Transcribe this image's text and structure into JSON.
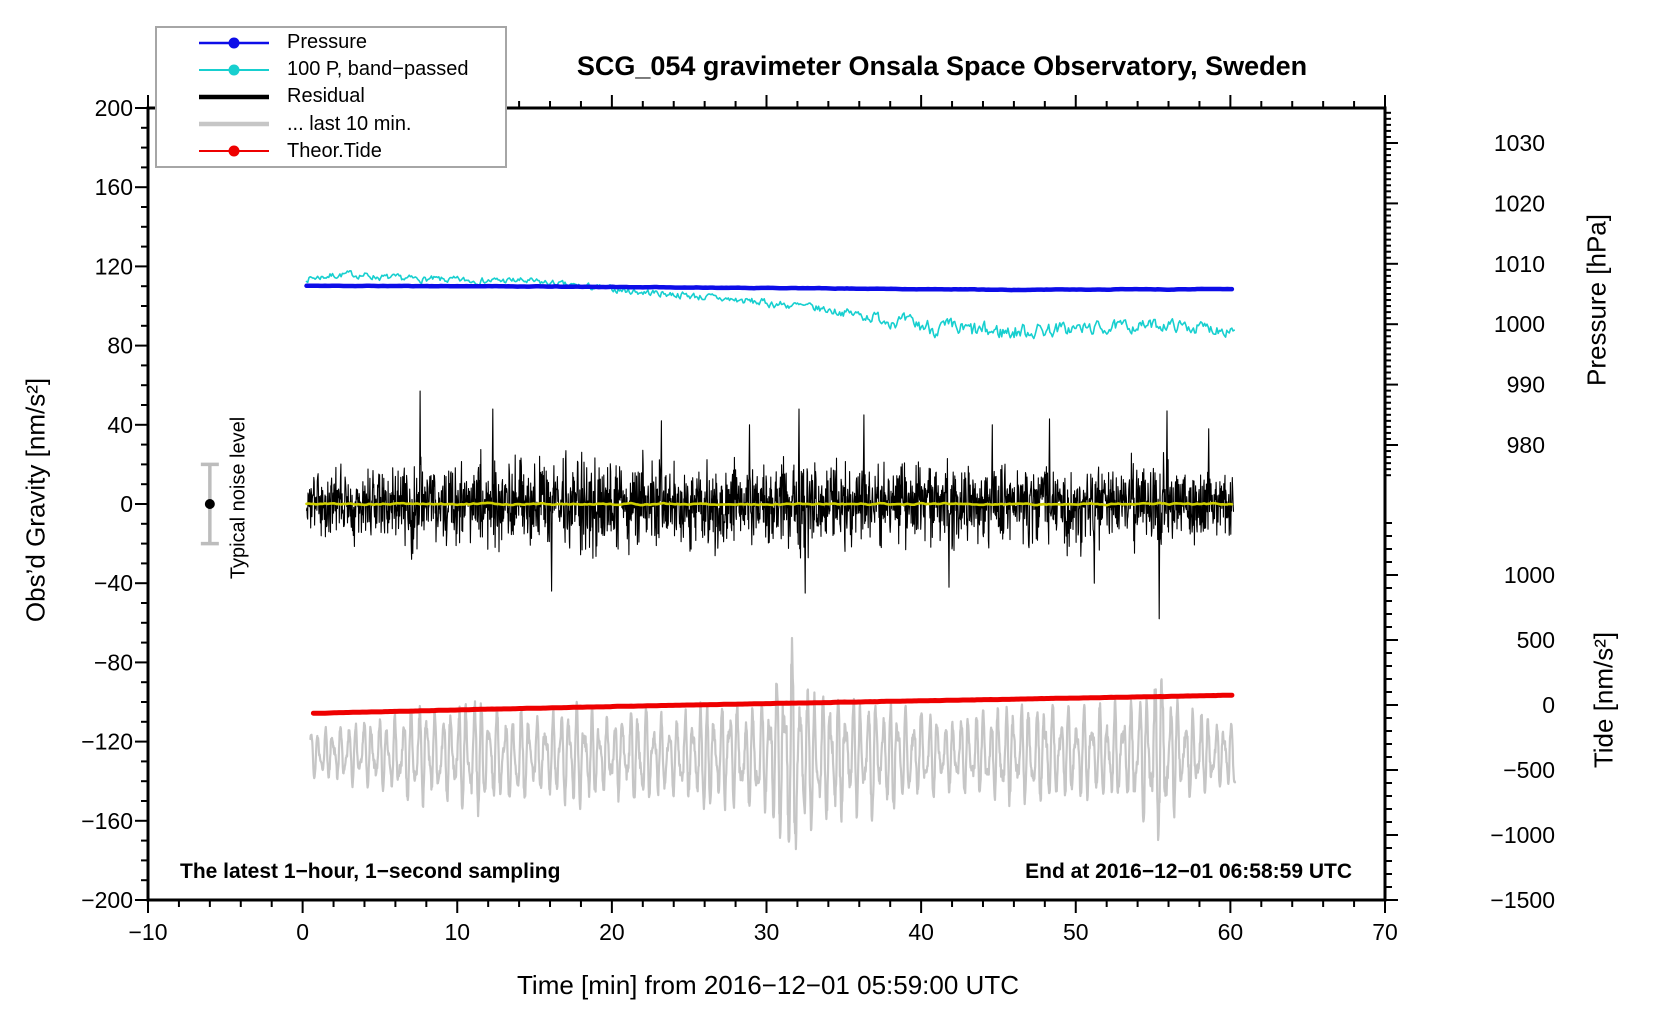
{
  "title": "SCG_054 gravimeter Onsala Space Observatory, Sweden",
  "annotations": {
    "bottom_left": "The latest 1−hour, 1−second sampling",
    "bottom_right": "End at 2016−12−01 06:58:59 UTC"
  },
  "legend": {
    "items": [
      {
        "label": "Pressure",
        "color": "#0d0de8",
        "dot": true,
        "line_width": 2.5
      },
      {
        "label": "100 P, band−passed",
        "color": "#17cfcf",
        "dot": true,
        "line_width": 2
      },
      {
        "label": "Residual",
        "color": "#000000",
        "dot": false,
        "line_width": 4.5
      },
      {
        "label": "... last 10 min.",
        "color": "#c6c6c6",
        "dot": false,
        "line_width": 4.5
      },
      {
        "label": "Theor.Tide",
        "color": "#ee0000",
        "dot": true,
        "line_width": 2
      }
    ]
  },
  "chart_data": {
    "type": "line",
    "title": "SCG_054 gravimeter Onsala Space Observatory, Sweden",
    "x_axis": {
      "label": "Time [min] from 2016−12−01 05:59:00 UTC",
      "min": -10,
      "max": 70,
      "major_ticks": [
        -10,
        0,
        10,
        20,
        30,
        40,
        50,
        60,
        70
      ],
      "tick_labels": [
        "−10",
        "0",
        "10",
        "20",
        "30",
        "40",
        "50",
        "60",
        "70"
      ],
      "minor_step": 2
    },
    "y_axis_left": {
      "label": "Obs’d Gravity [nm/s²]",
      "min": -200,
      "max": 200,
      "major_ticks": [
        200,
        160,
        120,
        80,
        40,
        0,
        -40,
        -80,
        -120,
        -160,
        -200
      ],
      "tick_labels": [
        "200",
        "160",
        "120",
        "80",
        "40",
        "0",
        "−40",
        "−80",
        "−120",
        "−160",
        "−200"
      ],
      "minor_step": 10
    },
    "y_axis_right_pressure": {
      "label": "Pressure [hPa]",
      "major_ticks": [
        1030,
        1020,
        1010,
        1000,
        990,
        980
      ],
      "tick_labels": [
        "1030",
        "1020",
        "1010",
        "1000",
        "990",
        "980"
      ],
      "minor_step": 1
    },
    "y_axis_right_tide": {
      "label": "Tide [nm/s²]",
      "major_ticks": [
        1000,
        500,
        0,
        -500,
        -1000,
        -1500
      ],
      "tick_labels": [
        "1000",
        "500",
        "0",
        "−500",
        "−1000",
        "−1500"
      ],
      "minor_step": 100
    },
    "noise_marker": {
      "label": "Typical noise level",
      "x": -6,
      "center": 0,
      "half_range": 20,
      "bar_color": "#bdbdbd",
      "dot_color": "#000000"
    },
    "series": [
      {
        "name": "... last 10 min.",
        "legend": true,
        "color": "#c6c6c6",
        "width": 2.2,
        "render": "oscillation",
        "seed": 9,
        "x_start": 0.5,
        "x_end": 60.3,
        "period_min": 0.5,
        "units": "nm/s2 (left axis)",
        "base": [
          [
            0,
            -126
          ],
          [
            10,
            -127
          ],
          [
            20,
            -127
          ],
          [
            30,
            -128
          ],
          [
            32,
            -128
          ],
          [
            40,
            -127
          ],
          [
            50,
            -126
          ],
          [
            60,
            -127
          ]
        ],
        "amplitude": [
          [
            0,
            10
          ],
          [
            2,
            12
          ],
          [
            4,
            15
          ],
          [
            6,
            18
          ],
          [
            7,
            22
          ],
          [
            8,
            24
          ],
          [
            9,
            20
          ],
          [
            10,
            24
          ],
          [
            11,
            26
          ],
          [
            12,
            24
          ],
          [
            13,
            20
          ],
          [
            14,
            22
          ],
          [
            15,
            18
          ],
          [
            16,
            20
          ],
          [
            17,
            22
          ],
          [
            18,
            24
          ],
          [
            19,
            20
          ],
          [
            20,
            18
          ],
          [
            21,
            22
          ],
          [
            22,
            24
          ],
          [
            23,
            20
          ],
          [
            24,
            18
          ],
          [
            25,
            22
          ],
          [
            26,
            24
          ],
          [
            27,
            26
          ],
          [
            28,
            24
          ],
          [
            29,
            26
          ],
          [
            30,
            28
          ],
          [
            31,
            40
          ],
          [
            31.7,
            54
          ],
          [
            32.3,
            46
          ],
          [
            33,
            30
          ],
          [
            34,
            28
          ],
          [
            35,
            30
          ],
          [
            36,
            26
          ],
          [
            37,
            28
          ],
          [
            38,
            26
          ],
          [
            39,
            24
          ],
          [
            40,
            22
          ],
          [
            41,
            18
          ],
          [
            42,
            16
          ],
          [
            43,
            18
          ],
          [
            44,
            20
          ],
          [
            45,
            22
          ],
          [
            46,
            24
          ],
          [
            47,
            22
          ],
          [
            48,
            24
          ],
          [
            49,
            22
          ],
          [
            50,
            24
          ],
          [
            51,
            22
          ],
          [
            52,
            24
          ],
          [
            53,
            22
          ],
          [
            54,
            26
          ],
          [
            55,
            34
          ],
          [
            55.7,
            42
          ],
          [
            56.5,
            28
          ],
          [
            57,
            22
          ],
          [
            58,
            20
          ],
          [
            59,
            18
          ],
          [
            60,
            16
          ]
        ]
      },
      {
        "name": "Theor.Tide",
        "legend": true,
        "color": "#ee0000",
        "width": 5,
        "render": "trend",
        "seed": 13,
        "x_start": 0.7,
        "x_end": 60.2,
        "jitter": 0.15,
        "units": "nm/s2 (left axis)",
        "points": [
          [
            0,
            -105.8
          ],
          [
            10,
            -104
          ],
          [
            20,
            -102.3
          ],
          [
            30,
            -100.8
          ],
          [
            40,
            -99.4
          ],
          [
            50,
            -98
          ],
          [
            60,
            -96.6
          ]
        ],
        "approx_tide_axis_nms2": {
          "start": -65,
          "end": 75
        }
      },
      {
        "name": "100 P, band−passed",
        "legend": true,
        "color": "#17cfcf",
        "width": 1.6,
        "render": "smooth-noise",
        "seed": 7,
        "x_start": 0.25,
        "x_end": 60.3,
        "units": "nm/s2 (left axis)",
        "points": [
          [
            0,
            113.5
          ],
          [
            1,
            114.5
          ],
          [
            2,
            115.5
          ],
          [
            3,
            116
          ],
          [
            4,
            115.5
          ],
          [
            5,
            114.5
          ],
          [
            6,
            114
          ],
          [
            8,
            113.5
          ],
          [
            10,
            113
          ],
          [
            12,
            112.8
          ],
          [
            14,
            112.8
          ],
          [
            16,
            111.5
          ],
          [
            17,
            110.5
          ],
          [
            18,
            110
          ],
          [
            20,
            108.5
          ],
          [
            22,
            107
          ],
          [
            24,
            106
          ],
          [
            26,
            104.5
          ],
          [
            28,
            103
          ],
          [
            30,
            101.5
          ],
          [
            32,
            100
          ],
          [
            34,
            98
          ],
          [
            36,
            95.5
          ],
          [
            38,
            93
          ],
          [
            40,
            90
          ],
          [
            42,
            88
          ],
          [
            44,
            87
          ],
          [
            46,
            87
          ],
          [
            48,
            88
          ],
          [
            50,
            88.5
          ],
          [
            52,
            89
          ],
          [
            54,
            90
          ],
          [
            56,
            90.5
          ],
          [
            58,
            89
          ],
          [
            60,
            88.5
          ]
        ],
        "amplitude": [
          [
            0,
            2
          ],
          [
            15,
            2
          ],
          [
            25,
            2.2
          ],
          [
            35,
            2.6
          ],
          [
            38,
            4
          ],
          [
            42,
            5.5
          ],
          [
            46,
            5
          ],
          [
            50,
            4
          ],
          [
            55,
            3.5
          ],
          [
            60,
            4
          ]
        ]
      },
      {
        "name": "Pressure",
        "legend": true,
        "color": "#0d0de8",
        "width": 4.5,
        "render": "trend",
        "seed": 11,
        "x_start": 0.25,
        "x_end": 60.2,
        "jitter": 0.3,
        "units": "nm/s2 (left axis)",
        "points": [
          [
            0,
            110.2
          ],
          [
            6,
            110.1
          ],
          [
            12,
            110.0
          ],
          [
            16,
            109.8
          ],
          [
            20,
            109.6
          ],
          [
            24,
            109.4
          ],
          [
            28,
            109.2
          ],
          [
            32,
            109.0
          ],
          [
            36,
            108.8
          ],
          [
            40,
            108.5
          ],
          [
            44,
            108.3
          ],
          [
            47,
            108.1
          ],
          [
            49,
            108.4
          ],
          [
            52,
            108.3
          ],
          [
            54,
            108.6
          ],
          [
            56,
            108.4
          ],
          [
            58,
            108.6
          ],
          [
            60,
            108.5
          ]
        ],
        "approx_pressure_hpa": {
          "start": 1006.3,
          "end": 1005.8
        }
      },
      {
        "name": "Residual",
        "legend": true,
        "color": "#000000",
        "width": 1.1,
        "render": "noise",
        "seed": 3,
        "x_start": 0.25,
        "x_end": 60.2,
        "center": 0,
        "units": "nm/s2 (left axis)",
        "envelope": [
          [
            0,
            15
          ],
          [
            1,
            19
          ],
          [
            2,
            23
          ],
          [
            3,
            21
          ],
          [
            4,
            25
          ],
          [
            5,
            27
          ],
          [
            6,
            23
          ],
          [
            7,
            31
          ],
          [
            8,
            27
          ],
          [
            9,
            25
          ],
          [
            10,
            29
          ],
          [
            11,
            31
          ],
          [
            12,
            34
          ],
          [
            13,
            29
          ],
          [
            14,
            31
          ],
          [
            15,
            27
          ],
          [
            16,
            29
          ],
          [
            17,
            27
          ],
          [
            18,
            31
          ],
          [
            19,
            29
          ],
          [
            20,
            31
          ],
          [
            21,
            27
          ],
          [
            22,
            31
          ],
          [
            23,
            29
          ],
          [
            24,
            27
          ],
          [
            25,
            29
          ],
          [
            26,
            27
          ],
          [
            27,
            29
          ],
          [
            28,
            27
          ],
          [
            29,
            25
          ],
          [
            30,
            29
          ],
          [
            31,
            27
          ],
          [
            32,
            31
          ],
          [
            33,
            27
          ],
          [
            34,
            25
          ],
          [
            35,
            29
          ],
          [
            36,
            31
          ],
          [
            37,
            27
          ],
          [
            38,
            25
          ],
          [
            39,
            27
          ],
          [
            40,
            25
          ],
          [
            41,
            27
          ],
          [
            42,
            29
          ],
          [
            43,
            27
          ],
          [
            44,
            29
          ],
          [
            45,
            27
          ],
          [
            46,
            25
          ],
          [
            47,
            29
          ],
          [
            48,
            31
          ],
          [
            49,
            27
          ],
          [
            50,
            29
          ],
          [
            51,
            27
          ],
          [
            52,
            29
          ],
          [
            53,
            27
          ],
          [
            54,
            29
          ],
          [
            55,
            33
          ],
          [
            56,
            27
          ],
          [
            57,
            25
          ],
          [
            58,
            25
          ],
          [
            59,
            23
          ],
          [
            60,
            21
          ]
        ],
        "peaks": [
          [
            7.6,
            57
          ],
          [
            12.3,
            48
          ],
          [
            16.1,
            -44
          ],
          [
            23.2,
            42
          ],
          [
            28.9,
            40
          ],
          [
            32.1,
            48
          ],
          [
            32.5,
            -45
          ],
          [
            36.3,
            45
          ],
          [
            41.8,
            -42
          ],
          [
            44.6,
            40
          ],
          [
            48.3,
            43
          ],
          [
            51.2,
            -40
          ],
          [
            55.4,
            -58
          ],
          [
            55.9,
            47
          ],
          [
            58.6,
            38
          ]
        ]
      },
      {
        "name": "Residual smoothed",
        "legend": false,
        "color": "#cfcf00",
        "width": 2.6,
        "render": "trend",
        "seed": 5,
        "x_start": 0.25,
        "x_end": 60.2,
        "jitter": 1.3,
        "units": "nm/s2 (left axis)",
        "points": [
          [
            0,
            0
          ],
          [
            60,
            0
          ]
        ]
      }
    ]
  }
}
